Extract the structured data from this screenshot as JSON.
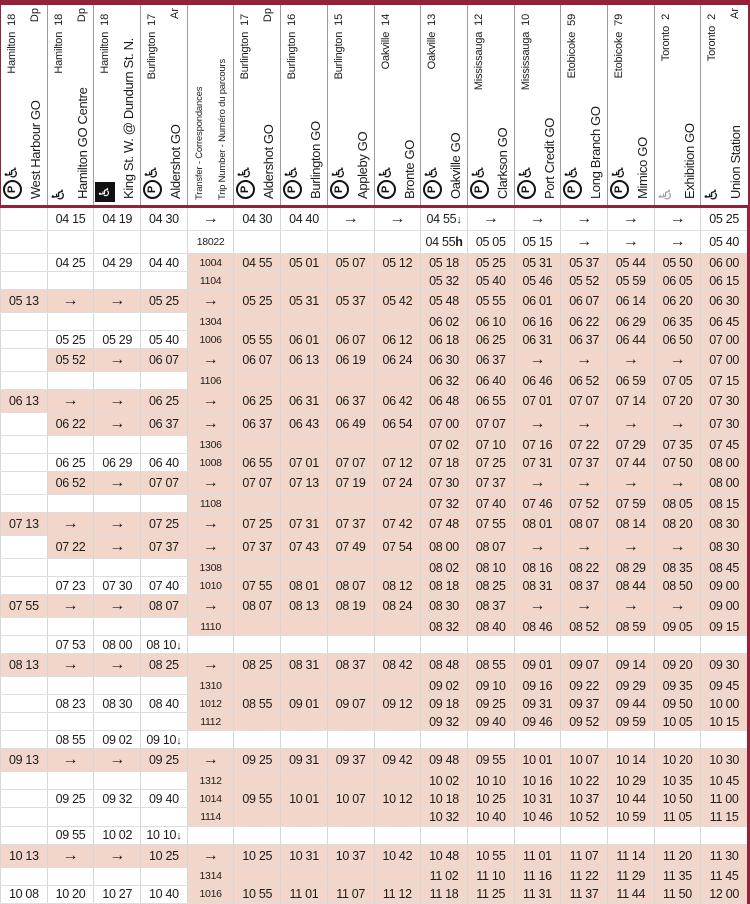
{
  "colors": {
    "maroon": "#94203a",
    "pink": "#f3d6ca",
    "grid_gray": "#d6d6d6",
    "header_line_gray": "#9b9b9b"
  },
  "legend": {
    "arrow_skip": "→",
    "terminates_marker": "↓",
    "note_marker": "h"
  },
  "table": {
    "columns": [
      {
        "station": "West Harbour GO",
        "zone": "Hamilton",
        "zone_num": "18",
        "dp_ar": "Dp",
        "icons": [
          "parking",
          "wheelchair"
        ]
      },
      {
        "station": "Hamilton GO Centre",
        "zone": "Hamilton",
        "zone_num": "18",
        "dp_ar": "Dp",
        "icons": [
          "wheelchair"
        ]
      },
      {
        "station": "King St. W. @ Dundurn St. N.",
        "zone": "Hamilton",
        "zone_num": "18",
        "dp_ar": "",
        "icons": [
          "wheelchair-inverse"
        ]
      },
      {
        "station": "Aldershot GO",
        "zone": "Burlington",
        "zone_num": "17",
        "dp_ar": "Ar",
        "icons": [
          "parking",
          "wheelchair"
        ]
      },
      {
        "station": "",
        "type": "trip",
        "transfer_label": "Transfer - Correspondances",
        "trip_label": "Trip Number - Numéro du parcours",
        "zone": "",
        "zone_num": "",
        "dp_ar": "",
        "icons": []
      },
      {
        "station": "Aldershot GO",
        "zone": "Burlington",
        "zone_num": "17",
        "dp_ar": "Dp",
        "icons": [
          "parking",
          "wheelchair"
        ]
      },
      {
        "station": "Burlington GO",
        "zone": "Burlington",
        "zone_num": "16",
        "dp_ar": "",
        "icons": [
          "parking",
          "wheelchair"
        ]
      },
      {
        "station": "Appleby GO",
        "zone": "Burlington",
        "zone_num": "15",
        "dp_ar": "",
        "icons": [
          "parking",
          "wheelchair"
        ]
      },
      {
        "station": "Bronte GO",
        "zone": "Oakville",
        "zone_num": "14",
        "dp_ar": "",
        "icons": [
          "parking",
          "wheelchair"
        ]
      },
      {
        "station": "Oakville GO",
        "zone": "Oakville",
        "zone_num": "13",
        "dp_ar": "",
        "icons": [
          "parking",
          "wheelchair"
        ]
      },
      {
        "station": "Clarkson GO",
        "zone": "Mississauga",
        "zone_num": "12",
        "dp_ar": "",
        "icons": [
          "parking",
          "wheelchair"
        ]
      },
      {
        "station": "Port Credit GO",
        "zone": "Mississauga",
        "zone_num": "10",
        "dp_ar": "",
        "icons": [
          "parking",
          "wheelchair"
        ]
      },
      {
        "station": "Long Branch GO",
        "zone": "Etobicoke",
        "zone_num": "59",
        "dp_ar": "",
        "icons": [
          "parking",
          "wheelchair"
        ]
      },
      {
        "station": "Mimico GO",
        "zone": "Etobicoke",
        "zone_num": "79",
        "dp_ar": "",
        "icons": [
          "parking",
          "wheelchair"
        ]
      },
      {
        "station": "Exhibition GO",
        "zone": "Toronto",
        "zone_num": "2",
        "dp_ar": "",
        "icons": [
          "wheelchair-gray"
        ]
      },
      {
        "station": "Union Station",
        "zone": "Toronto",
        "zone_num": "2",
        "dp_ar": "Ar",
        "icons": [
          "wheelchair"
        ]
      }
    ],
    "rows": [
      {
        "pink_from": null,
        "cells": [
          "",
          "04 15",
          "04 19",
          "04 30",
          "→",
          "04 30",
          "04 40",
          "→",
          "→",
          "04 55↓",
          "→",
          "→",
          "→",
          "→",
          "→",
          "05 25"
        ]
      },
      {
        "pink_from": null,
        "cells": [
          "",
          "",
          "",
          "",
          "18022",
          "",
          "",
          "",
          "",
          "04 55h",
          "05 05",
          "05 15",
          "→",
          "→",
          "→",
          "05 40"
        ]
      },
      {
        "pink_from": 4,
        "cells": [
          "",
          "04 25",
          "04 29",
          "04 40",
          "1004",
          "04 55",
          "05 01",
          "05 07",
          "05 12",
          "05 18",
          "05 25",
          "05 31",
          "05 37",
          "05 44",
          "05 50",
          "06 00"
        ]
      },
      {
        "pink_from": 4,
        "cells": [
          "",
          "",
          "",
          "",
          "1104",
          "",
          "",
          "",
          "",
          "05 32",
          "05 40",
          "05 46",
          "05 52",
          "05 59",
          "06 05",
          "06 15"
        ]
      },
      {
        "pink_from": 0,
        "cells": [
          "05 13",
          "→",
          "→",
          "05 25",
          "→",
          "05 25",
          "05 31",
          "05 37",
          "05 42",
          "05 48",
          "05 55",
          "06 01",
          "06 07",
          "06 14",
          "06 20",
          "06 30"
        ]
      },
      {
        "pink_from": 4,
        "cells": [
          "",
          "",
          "",
          "",
          "1304",
          "",
          "",
          "",
          "",
          "06 02",
          "06 10",
          "06 16",
          "06 22",
          "06 29",
          "06 35",
          "06 45"
        ]
      },
      {
        "pink_from": 4,
        "cells": [
          "",
          "05 25",
          "05 29",
          "05 40",
          "1006",
          "05 55",
          "06 01",
          "06 07",
          "06 12",
          "06 18",
          "06 25",
          "06 31",
          "06 37",
          "06 44",
          "06 50",
          "07 00"
        ]
      },
      {
        "pink_from": 1,
        "cells": [
          "",
          "05 52",
          "→",
          "06 07",
          "→",
          "06 07",
          "06 13",
          "06 19",
          "06 24",
          "06 30",
          "06 37",
          "→",
          "→",
          "→",
          "→",
          "07 00"
        ]
      },
      {
        "pink_from": 4,
        "cells": [
          "",
          "",
          "",
          "",
          "1106",
          "",
          "",
          "",
          "",
          "06 32",
          "06 40",
          "06 46",
          "06 52",
          "06 59",
          "07 05",
          "07 15"
        ]
      },
      {
        "pink_from": 0,
        "cells": [
          "06 13",
          "→",
          "→",
          "06 25",
          "→",
          "06 25",
          "06 31",
          "06 37",
          "06 42",
          "06 48",
          "06 55",
          "07 01",
          "07 07",
          "07 14",
          "07 20",
          "07 30"
        ]
      },
      {
        "pink_from": 1,
        "cells": [
          "",
          "06 22",
          "→",
          "06 37",
          "→",
          "06 37",
          "06 43",
          "06 49",
          "06 54",
          "07 00",
          "07 07",
          "→",
          "→",
          "→",
          "→",
          "07 30"
        ]
      },
      {
        "pink_from": 4,
        "cells": [
          "",
          "",
          "",
          "",
          "1306",
          "",
          "",
          "",
          "",
          "07 02",
          "07 10",
          "07 16",
          "07 22",
          "07 29",
          "07 35",
          "07 45"
        ]
      },
      {
        "pink_from": 4,
        "cells": [
          "",
          "06 25",
          "06 29",
          "06 40",
          "1008",
          "06 55",
          "07 01",
          "07 07",
          "07 12",
          "07 18",
          "07 25",
          "07 31",
          "07 37",
          "07 44",
          "07 50",
          "08 00"
        ]
      },
      {
        "pink_from": 1,
        "cells": [
          "",
          "06 52",
          "→",
          "07 07",
          "→",
          "07 07",
          "07 13",
          "07 19",
          "07 24",
          "07 30",
          "07 37",
          "→",
          "→",
          "→",
          "→",
          "08 00"
        ]
      },
      {
        "pink_from": 4,
        "cells": [
          "",
          "",
          "",
          "",
          "1108",
          "",
          "",
          "",
          "",
          "07 32",
          "07 40",
          "07 46",
          "07 52",
          "07 59",
          "08 05",
          "08 15"
        ]
      },
      {
        "pink_from": 0,
        "cells": [
          "07 13",
          "→",
          "→",
          "07 25",
          "→",
          "07 25",
          "07 31",
          "07 37",
          "07 42",
          "07 48",
          "07 55",
          "08 01",
          "08 07",
          "08 14",
          "08 20",
          "08 30"
        ]
      },
      {
        "pink_from": 1,
        "cells": [
          "",
          "07 22",
          "→",
          "07 37",
          "→",
          "07 37",
          "07 43",
          "07 49",
          "07 54",
          "08 00",
          "08 07",
          "→",
          "→",
          "→",
          "→",
          "08 30"
        ]
      },
      {
        "pink_from": 4,
        "cells": [
          "",
          "",
          "",
          "",
          "1308",
          "",
          "",
          "",
          "",
          "08 02",
          "08 10",
          "08 16",
          "08 22",
          "08 29",
          "08 35",
          "08 45"
        ]
      },
      {
        "pink_from": 4,
        "cells": [
          "",
          "07 23",
          "07 30",
          "07 40",
          "1010",
          "07 55",
          "08 01",
          "08 07",
          "08 12",
          "08 18",
          "08 25",
          "08 31",
          "08 37",
          "08 44",
          "08 50",
          "09 00"
        ]
      },
      {
        "pink_from": 0,
        "cells": [
          "07 55",
          "→",
          "→",
          "08 07",
          "→",
          "08 07",
          "08 13",
          "08 19",
          "08 24",
          "08 30",
          "08 37",
          "→",
          "→",
          "→",
          "→",
          "09 00"
        ]
      },
      {
        "pink_from": 4,
        "cells": [
          "",
          "",
          "",
          "",
          "1110",
          "",
          "",
          "",
          "",
          "08 32",
          "08 40",
          "08 46",
          "08 52",
          "08 59",
          "09 05",
          "09 15"
        ]
      },
      {
        "pink_from": null,
        "cells": [
          "",
          "07 53",
          "08 00",
          "08 10↓",
          "",
          "",
          "",
          "",
          "",
          "",
          "",
          "",
          "",
          "",
          "",
          ""
        ]
      },
      {
        "pink_from": 0,
        "cells": [
          "08 13",
          "→",
          "→",
          "08 25",
          "→",
          "08 25",
          "08 31",
          "08 37",
          "08 42",
          "08 48",
          "08 55",
          "09 01",
          "09 07",
          "09 14",
          "09 20",
          "09 30"
        ]
      },
      {
        "pink_from": 4,
        "cells": [
          "",
          "",
          "",
          "",
          "1310",
          "",
          "",
          "",
          "",
          "09 02",
          "09 10",
          "09 16",
          "09 22",
          "09 29",
          "09 35",
          "09 45"
        ]
      },
      {
        "pink_from": 4,
        "cells": [
          "",
          "08 23",
          "08 30",
          "08 40",
          "1012",
          "08 55",
          "09 01",
          "09 07",
          "09 12",
          "09 18",
          "09 25",
          "09 31",
          "09 37",
          "09 44",
          "09 50",
          "10 00"
        ]
      },
      {
        "pink_from": 4,
        "cells": [
          "",
          "",
          "",
          "",
          "1112",
          "",
          "",
          "",
          "",
          "09 32",
          "09 40",
          "09 46",
          "09 52",
          "09 59",
          "10 05",
          "10 15"
        ]
      },
      {
        "pink_from": null,
        "cells": [
          "",
          "08 55",
          "09 02",
          "09 10↓",
          "",
          "",
          "",
          "",
          "",
          "",
          "",
          "",
          "",
          "",
          "",
          ""
        ]
      },
      {
        "pink_from": 0,
        "cells": [
          "09 13",
          "→",
          "→",
          "09 25",
          "→",
          "09 25",
          "09 31",
          "09 37",
          "09 42",
          "09 48",
          "09 55",
          "10 01",
          "10 07",
          "10 14",
          "10 20",
          "10 30"
        ]
      },
      {
        "pink_from": 4,
        "cells": [
          "",
          "",
          "",
          "",
          "1312",
          "",
          "",
          "",
          "",
          "10 02",
          "10 10",
          "10 16",
          "10 22",
          "10 29",
          "10 35",
          "10 45"
        ]
      },
      {
        "pink_from": 4,
        "cells": [
          "",
          "09 25",
          "09 32",
          "09 40",
          "1014",
          "09 55",
          "10 01",
          "10 07",
          "10 12",
          "10 18",
          "10 25",
          "10 31",
          "10 37",
          "10 44",
          "10 50",
          "11 00"
        ]
      },
      {
        "pink_from": 4,
        "cells": [
          "",
          "",
          "",
          "",
          "1114",
          "",
          "",
          "",
          "",
          "10 32",
          "10 40",
          "10 46",
          "10 52",
          "10 59",
          "11 05",
          "11 15"
        ]
      },
      {
        "pink_from": null,
        "cells": [
          "",
          "09 55",
          "10 02",
          "10 10↓",
          "",
          "",
          "",
          "",
          "",
          "",
          "",
          "",
          "",
          "",
          "",
          ""
        ]
      },
      {
        "pink_from": 0,
        "cells": [
          "10 13",
          "→",
          "→",
          "10 25",
          "→",
          "10 25",
          "10 31",
          "10 37",
          "10 42",
          "10 48",
          "10 55",
          "11 01",
          "11 07",
          "11 14",
          "11 20",
          "11 30"
        ]
      },
      {
        "pink_from": 4,
        "cells": [
          "",
          "",
          "",
          "",
          "1314",
          "",
          "",
          "",
          "",
          "11 02",
          "11 10",
          "11 16",
          "11 22",
          "11 29",
          "11 35",
          "11 45"
        ]
      },
      {
        "pink_from": 4,
        "cells": [
          "10 08",
          "10 20",
          "10 27",
          "10 40",
          "1016",
          "10 55",
          "11 01",
          "11 07",
          "11 12",
          "11 18",
          "11 25",
          "11 31",
          "11 37",
          "11 44",
          "11 50",
          "12 00"
        ]
      }
    ]
  }
}
